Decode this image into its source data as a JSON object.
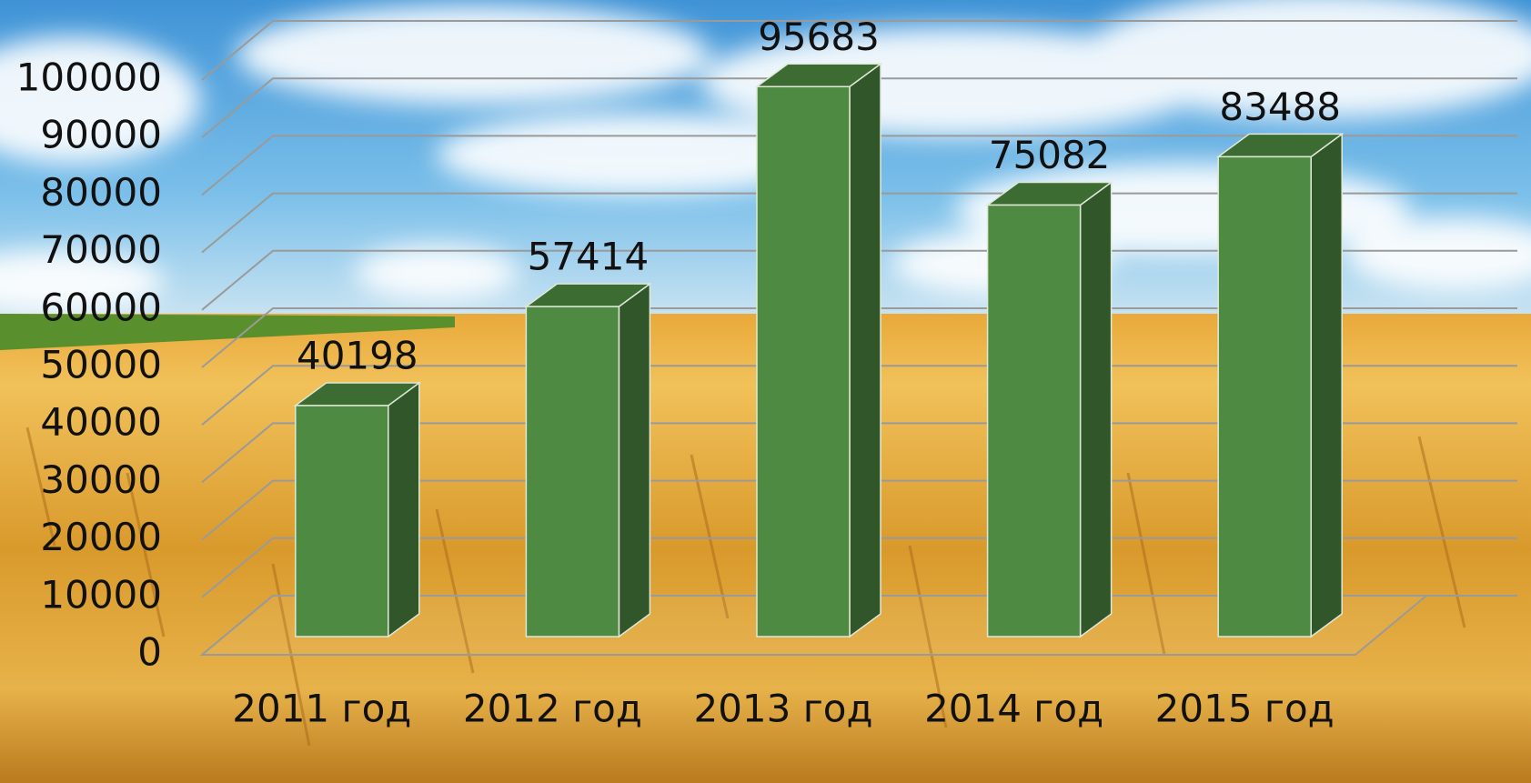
{
  "chart_data": {
    "type": "bar",
    "categories": [
      "2011 год",
      "2012 год",
      "2013 год",
      "2014 год",
      "2015 год"
    ],
    "values": [
      40198,
      57414,
      95683,
      75082,
      83488
    ],
    "color": "#4e8a42",
    "ylim": [
      0,
      100000
    ],
    "yticks": [
      0,
      10000,
      20000,
      30000,
      40000,
      50000,
      60000,
      70000,
      80000,
      90000,
      100000
    ],
    "grid": true
  }
}
